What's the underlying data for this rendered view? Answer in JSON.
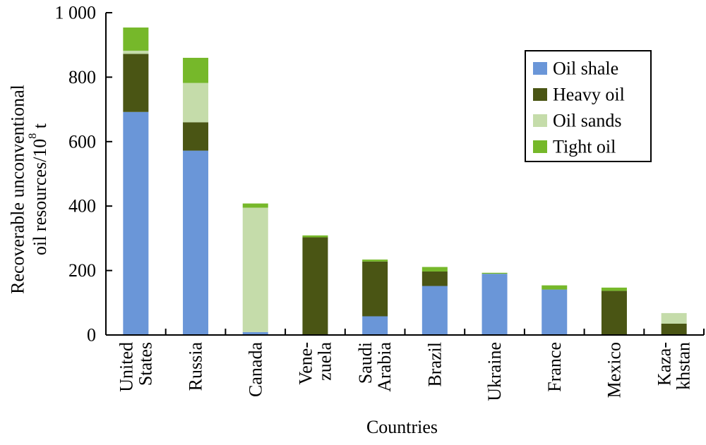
{
  "chart_data": {
    "type": "bar",
    "stacked": true,
    "categories": [
      [
        "United",
        "States"
      ],
      [
        "Russia"
      ],
      [
        "Canada"
      ],
      [
        "Vene-",
        "zuela"
      ],
      [
        "Saudi",
        "Arabia"
      ],
      [
        "Brazil"
      ],
      [
        "Ukraine"
      ],
      [
        "France"
      ],
      [
        "Mexico"
      ],
      [
        "Kaza-",
        "khstan"
      ]
    ],
    "series": [
      {
        "name": "Oil shale",
        "color": "#6a96d8",
        "values": [
          692,
          572,
          9,
          0,
          58,
          152,
          190,
          141,
          0,
          0
        ]
      },
      {
        "name": "Heavy oil",
        "color": "#4a5514",
        "values": [
          180,
          88,
          0,
          303,
          170,
          45,
          0,
          0,
          137,
          35
        ]
      },
      {
        "name": "Oil sands",
        "color": "#c5dcaa",
        "values": [
          10,
          122,
          386,
          0,
          0,
          0,
          0,
          0,
          0,
          33
        ]
      },
      {
        "name": "Tight oil",
        "color": "#76b82a",
        "values": [
          72,
          78,
          13,
          6,
          6,
          14,
          3,
          13,
          10,
          0
        ]
      }
    ],
    "ylim": [
      0,
      1000
    ],
    "yticks": [
      0,
      200,
      400,
      600,
      800,
      1000
    ],
    "ytick_labels": [
      "0",
      "200",
      "400",
      "600",
      "800",
      "1 000"
    ],
    "ylabel_lines": [
      "Recoverable unconventional",
      "oil resources/10"
    ],
    "ylabel_superscript": "8",
    "ylabel_unit": " t",
    "xlabel": "Countries",
    "legend_position": "top-right",
    "grid": false
  }
}
